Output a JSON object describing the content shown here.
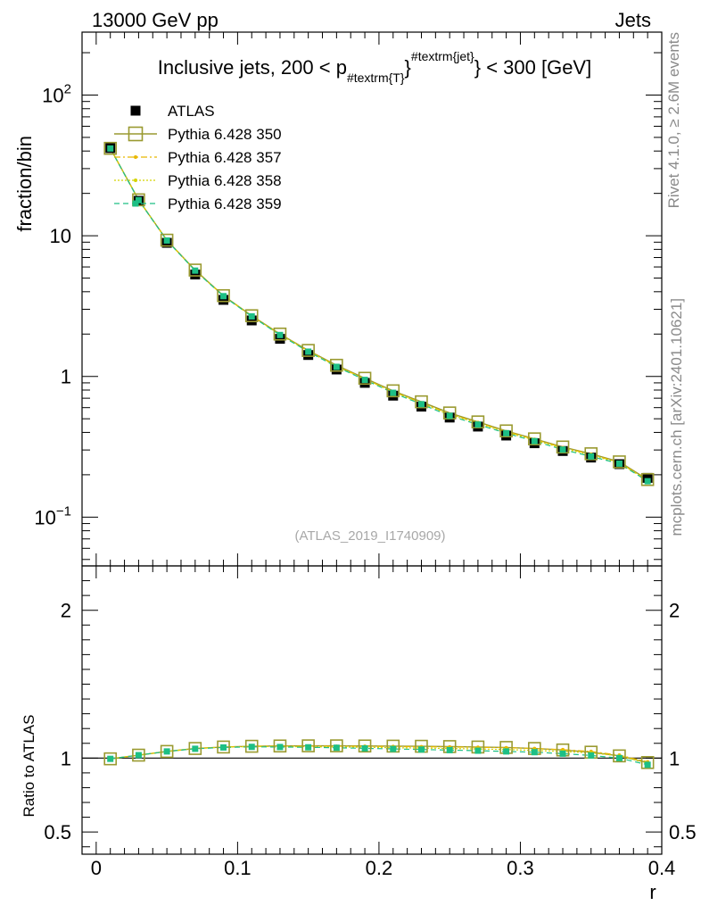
{
  "header": {
    "energy_label": "13000 GeV pp",
    "process_label": "Jets"
  },
  "side": {
    "rivet_label": "Rivet 4.1.0, ≥ 2.6M events",
    "source_label": "mcplots.cern.ch [arXiv:2401.10621]"
  },
  "chart_data": [
    {
      "type": "scatter",
      "panel": "main",
      "title_parts": {
        "prefix": "Inclusive jets, 200 < p",
        "subscript": "#textrm{T}",
        "superscript": "#textrm{jet}",
        "suffix": "} < 300 [GeV]"
      },
      "ylabel": "fraction/bin",
      "yscale": "log",
      "ylim": [
        0.045,
        280
      ],
      "xlim": [
        -0.01,
        0.4
      ],
      "y_tick_labels": [
        {
          "base": "10",
          "exp": "−1",
          "value": 0.1
        },
        {
          "text": "1",
          "value": 1
        },
        {
          "text": "10",
          "value": 10
        },
        {
          "base": "10",
          "exp": "2",
          "value": 100
        }
      ],
      "watermark": "(ATLAS_2019_I1740909)",
      "legend_position": "top-left",
      "x": [
        0.01,
        0.03,
        0.05,
        0.07,
        0.09,
        0.11,
        0.13,
        0.15,
        0.17,
        0.19,
        0.21,
        0.23,
        0.25,
        0.27,
        0.29,
        0.31,
        0.33,
        0.35,
        0.37,
        0.39
      ],
      "series": [
        {
          "name": "ATLAS",
          "color": "#000000",
          "values": [
            42,
            17.7,
            8.9,
            5.3,
            3.5,
            2.5,
            1.85,
            1.42,
            1.12,
            0.9,
            0.73,
            0.61,
            0.51,
            0.44,
            0.38,
            0.335,
            0.295,
            0.265,
            0.238,
            0.19
          ]
        },
        {
          "name": "Pythia 6.428 350",
          "color": "#9a9a30",
          "values": [
            41.8,
            18.0,
            9.3,
            5.7,
            3.75,
            2.7,
            2.0,
            1.53,
            1.2,
            0.97,
            0.79,
            0.66,
            0.55,
            0.475,
            0.41,
            0.36,
            0.315,
            0.282,
            0.247,
            0.185
          ]
        },
        {
          "name": "Pythia 6.428 357",
          "color": "#e8b800",
          "values": [
            41.8,
            18.0,
            9.28,
            5.68,
            3.74,
            2.69,
            1.99,
            1.52,
            1.19,
            0.96,
            0.78,
            0.65,
            0.54,
            0.47,
            0.405,
            0.357,
            0.312,
            0.28,
            0.244,
            0.183
          ]
        },
        {
          "name": "Pythia 6.428 358",
          "color": "#d4d400",
          "values": [
            41.8,
            18.0,
            9.27,
            5.66,
            3.73,
            2.68,
            1.98,
            1.51,
            1.18,
            0.955,
            0.775,
            0.645,
            0.535,
            0.465,
            0.4,
            0.353,
            0.308,
            0.276,
            0.242,
            0.182
          ]
        },
        {
          "name": "Pythia 6.428 359",
          "color": "#1dbf85",
          "values": [
            41.7,
            17.9,
            9.25,
            5.65,
            3.72,
            2.67,
            1.97,
            1.5,
            1.17,
            0.945,
            0.765,
            0.635,
            0.525,
            0.455,
            0.395,
            0.347,
            0.302,
            0.27,
            0.24,
            0.18
          ]
        }
      ]
    },
    {
      "type": "scatter",
      "panel": "ratio",
      "ylabel": "Ratio to ATLAS",
      "xlabel": "r",
      "ylim": [
        0.35,
        2.3
      ],
      "xlim": [
        -0.01,
        0.4
      ],
      "y_tick_labels": [
        {
          "text": "0.5",
          "value": 0.5
        },
        {
          "text": "1",
          "value": 1
        },
        {
          "text": "2",
          "value": 2
        }
      ],
      "x_tick_labels": [
        {
          "text": "0",
          "value": 0
        },
        {
          "text": "0.1",
          "value": 0.1
        },
        {
          "text": "0.2",
          "value": 0.2
        },
        {
          "text": "0.3",
          "value": 0.3
        },
        {
          "text": "0.4",
          "value": 0.4
        }
      ],
      "x": [
        0.01,
        0.03,
        0.05,
        0.07,
        0.09,
        0.11,
        0.13,
        0.15,
        0.17,
        0.19,
        0.21,
        0.23,
        0.25,
        0.27,
        0.29,
        0.31,
        0.33,
        0.35,
        0.37,
        0.39
      ],
      "series": [
        {
          "name": "ATLAS",
          "color": "#000000",
          "values": [
            1,
            1,
            1,
            1,
            1,
            1,
            1,
            1,
            1,
            1,
            1,
            1,
            1,
            1,
            1,
            1,
            1,
            1,
            1,
            1
          ]
        },
        {
          "name": "Pythia 6.428 350",
          "color": "#9a9a30",
          "values": [
            0.995,
            1.02,
            1.045,
            1.065,
            1.075,
            1.08,
            1.082,
            1.083,
            1.083,
            1.082,
            1.081,
            1.08,
            1.078,
            1.075,
            1.072,
            1.065,
            1.055,
            1.04,
            1.015,
            0.97
          ]
        },
        {
          "name": "Pythia 6.428 357",
          "color": "#e8b800",
          "values": [
            0.995,
            1.02,
            1.045,
            1.065,
            1.075,
            1.08,
            1.081,
            1.081,
            1.08,
            1.08,
            1.078,
            1.077,
            1.075,
            1.073,
            1.07,
            1.065,
            1.057,
            1.045,
            1.02,
            0.975
          ]
        },
        {
          "name": "Pythia 6.428 358",
          "color": "#d4d400",
          "values": [
            0.995,
            1.02,
            1.045,
            1.065,
            1.074,
            1.078,
            1.078,
            1.077,
            1.075,
            1.073,
            1.07,
            1.068,
            1.065,
            1.062,
            1.058,
            1.052,
            1.045,
            1.035,
            1.015,
            0.965
          ]
        },
        {
          "name": "Pythia 6.428 359",
          "color": "#1dbf85",
          "values": [
            0.995,
            1.02,
            1.045,
            1.063,
            1.072,
            1.076,
            1.075,
            1.073,
            1.07,
            1.066,
            1.062,
            1.058,
            1.054,
            1.05,
            1.045,
            1.04,
            1.03,
            1.018,
            1.0,
            0.955
          ]
        }
      ]
    }
  ]
}
